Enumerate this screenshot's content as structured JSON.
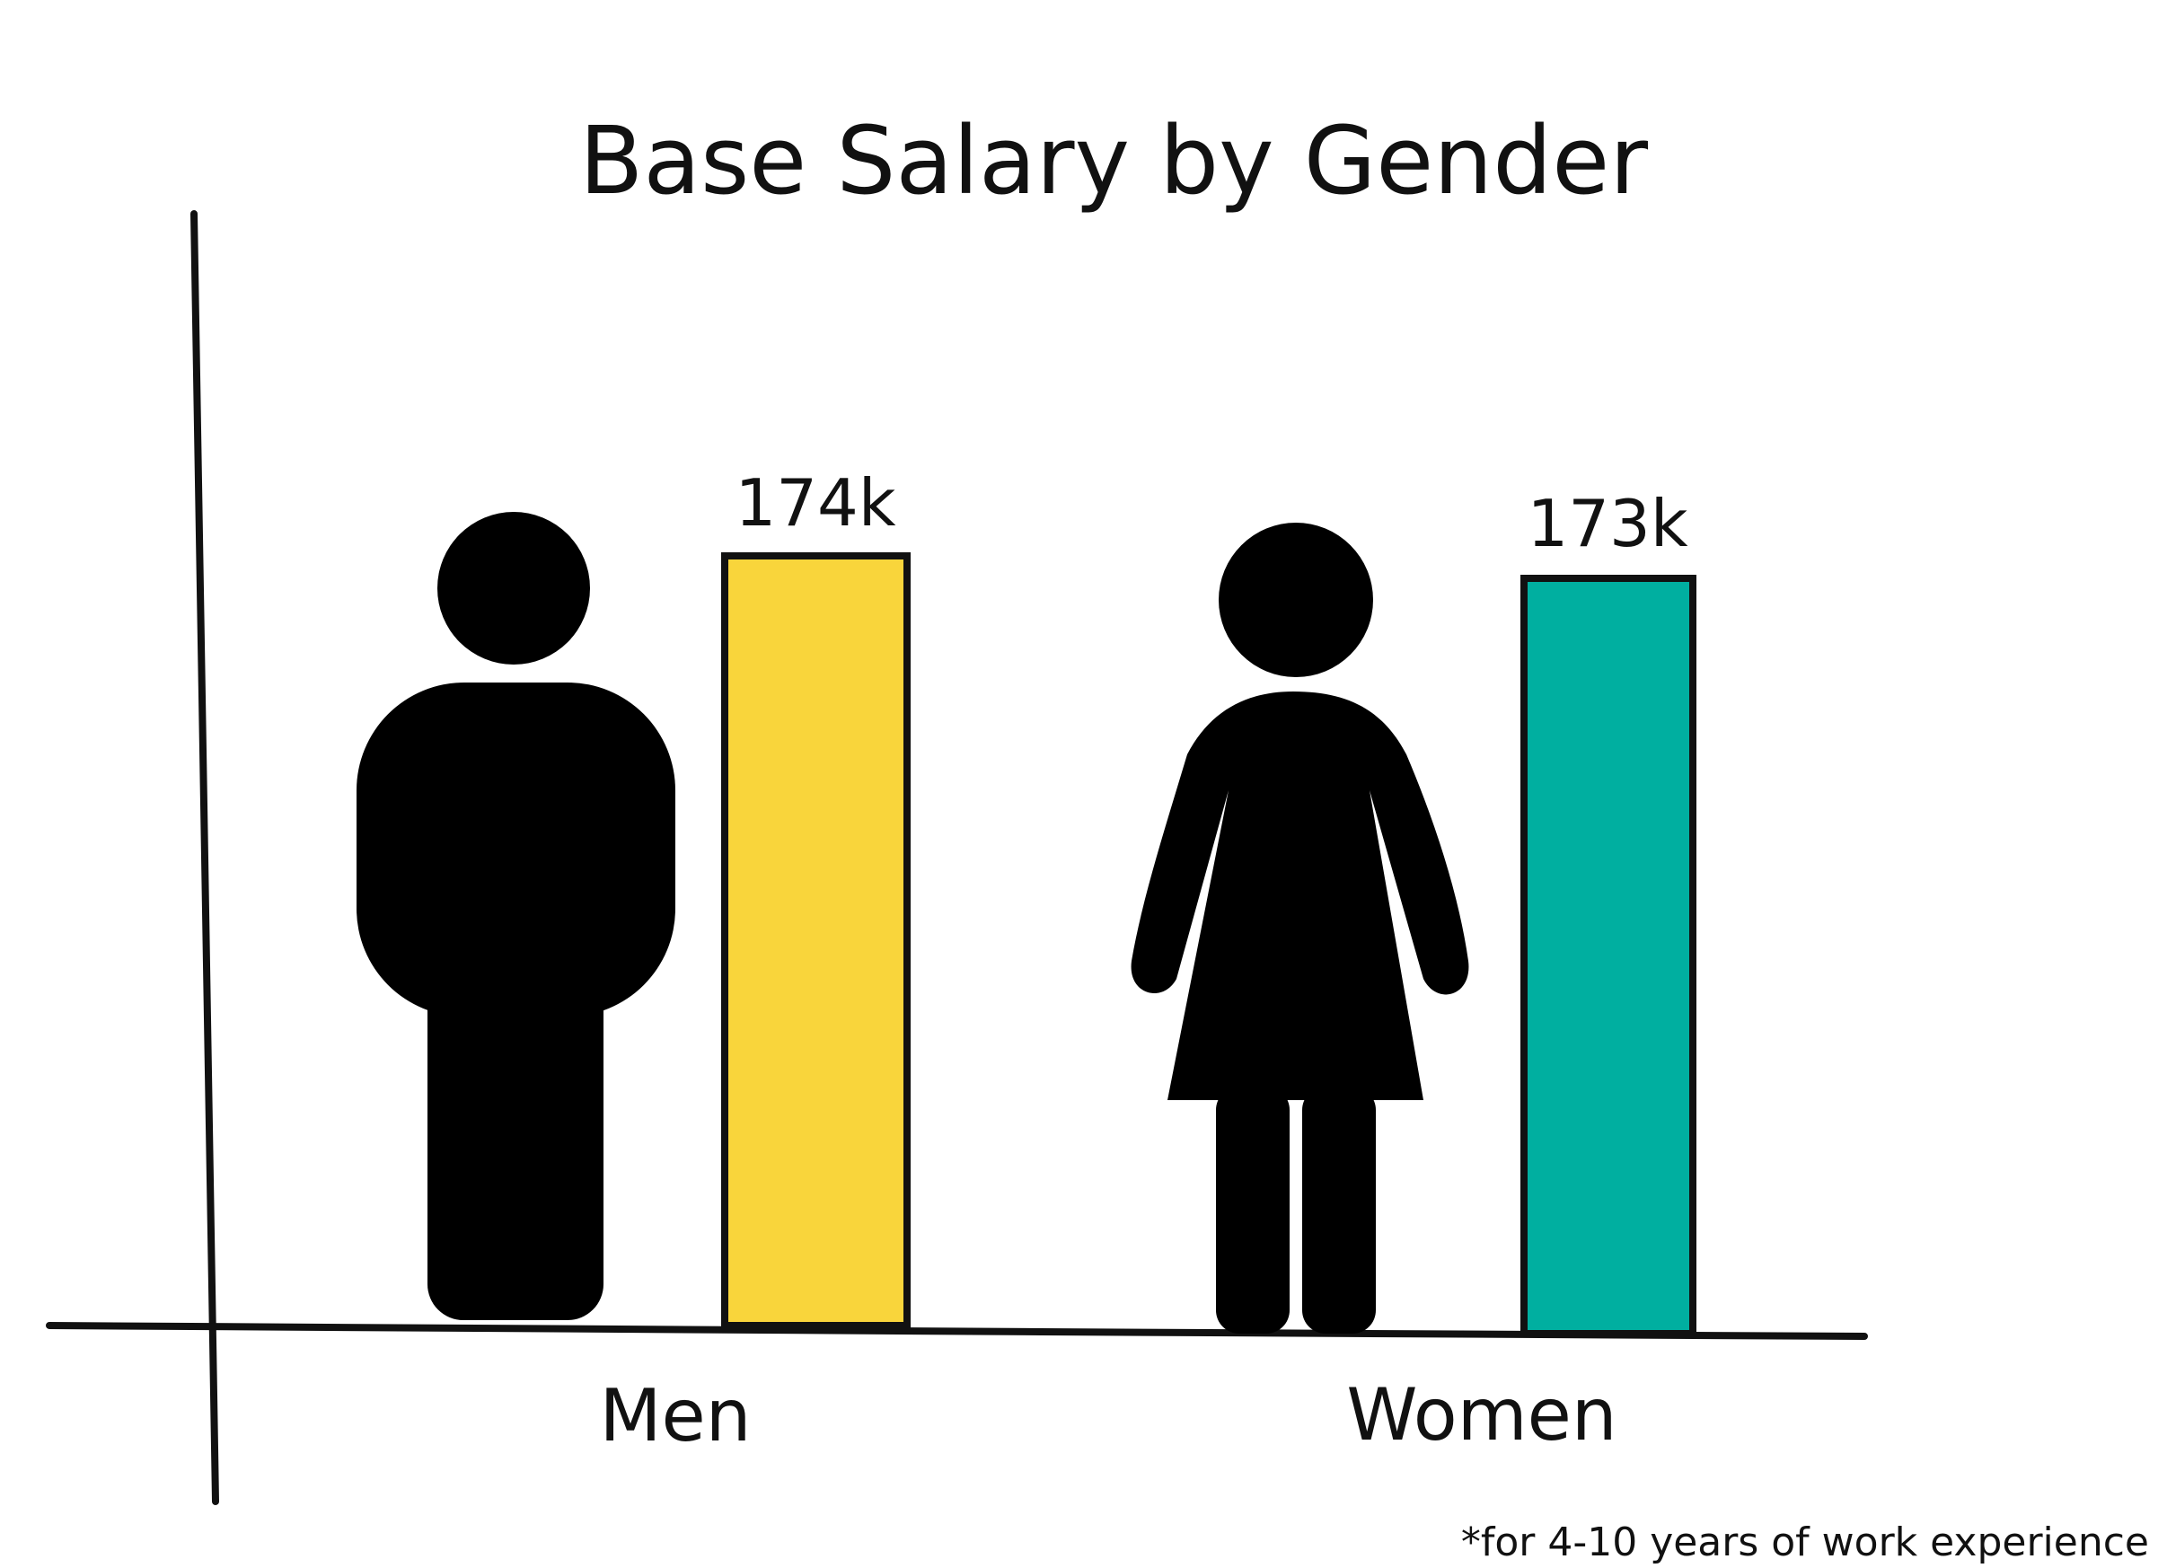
{
  "chart_data": {
    "type": "bar",
    "title": "Base Salary by Gender",
    "categories": [
      "Men",
      "Women"
    ],
    "values": [
      174,
      173
    ],
    "value_labels": [
      "174k",
      "173k"
    ],
    "unit": "k",
    "bar_colors": [
      "#f9d53b",
      "#00afa0"
    ],
    "icons": [
      "man-icon",
      "woman-icon"
    ],
    "footnote": "*for 4-10 years of work experience",
    "grid": false,
    "legend": "none"
  }
}
